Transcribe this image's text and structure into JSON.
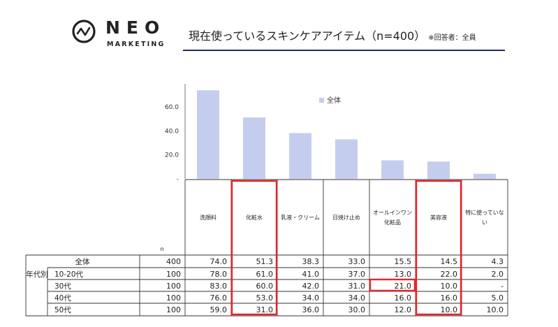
{
  "brand": {
    "name": "NEO",
    "sub": "MARKETING"
  },
  "title": "現在使っているスキンケアアイテム（n=400）",
  "title_note": "※回答者：全員",
  "colors": {
    "bar": "#c5cdef",
    "highlight": "#e8242b",
    "rule": "#1f2a6b"
  },
  "chart_data": {
    "type": "bar",
    "categories": [
      "洗顔料",
      "化粧水",
      "乳液・クリーム",
      "日焼け止め",
      "オールインワン化粧品",
      "美容液",
      "特に使っていない"
    ],
    "category_lines": [
      [
        "洗顔料"
      ],
      [
        "化粧水"
      ],
      [
        "乳液・クリーム"
      ],
      [
        "日焼け止め"
      ],
      [
        "オールインワン",
        "化粧品"
      ],
      [
        "美容液"
      ],
      [
        "特に使っていな",
        "い"
      ]
    ],
    "series": [
      {
        "name": "全体",
        "values": [
          74.0,
          51.3,
          38.3,
          33.0,
          15.5,
          14.5,
          4.3
        ]
      }
    ],
    "ylim": [
      0,
      70
    ],
    "yticks": [
      20,
      40,
      60
    ],
    "ytick_labels": [
      "20.0",
      "40.0",
      "60.0"
    ],
    "zero_label": "-",
    "legend": "top-right"
  },
  "table": {
    "n_header": "n",
    "group_label": "年代別",
    "rows": [
      {
        "label": "全体",
        "n": "400",
        "values": [
          "74.0",
          "51.3",
          "38.3",
          "33.0",
          "15.5",
          "14.5",
          "4.3"
        ]
      },
      {
        "label": "10-20代",
        "n": "100",
        "values": [
          "78.0",
          "61.0",
          "41.0",
          "37.0",
          "13.0",
          "22.0",
          "2.0"
        ]
      },
      {
        "label": "30代",
        "n": "100",
        "values": [
          "83.0",
          "60.0",
          "42.0",
          "31.0",
          "21.0",
          "10.0",
          "-"
        ]
      },
      {
        "label": "40代",
        "n": "100",
        "values": [
          "76.0",
          "53.0",
          "34.0",
          "34.0",
          "16.0",
          "16.0",
          "5.0"
        ]
      },
      {
        "label": "50代",
        "n": "100",
        "values": [
          "59.0",
          "31.0",
          "36.0",
          "30.0",
          "12.0",
          "10.0",
          "10.0"
        ]
      }
    ]
  }
}
